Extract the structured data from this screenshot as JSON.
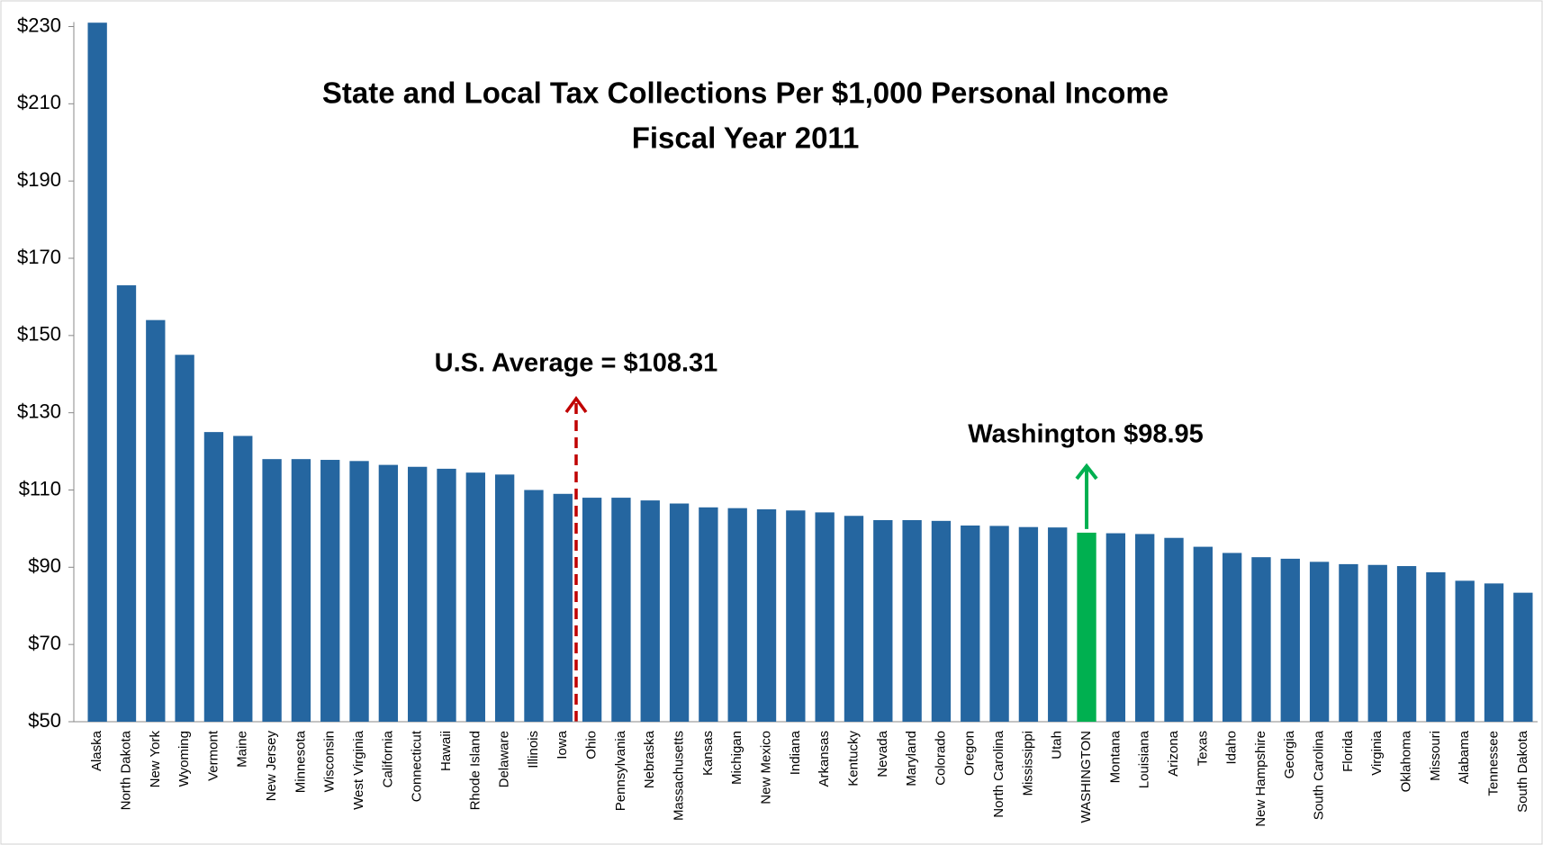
{
  "chart_data": {
    "type": "bar",
    "title": "State and Local Tax Collections Per $1,000 Personal Income",
    "subtitle": "Fiscal Year 2011",
    "categories": [
      "Alaska",
      "North Dakota",
      "New York",
      "Wyoming",
      "Vermont",
      "Maine",
      "New Jersey",
      "Minnesota",
      "Wisconsin",
      "West Virginia",
      "California",
      "Connecticut",
      "Hawaii",
      "Rhode Island",
      "Delaware",
      "Illinois",
      "Iowa",
      "Ohio",
      "Pennsylvania",
      "Nebraska",
      "Massachusetts",
      "Kansas",
      "Michigan",
      "New Mexico",
      "Indiana",
      "Arkansas",
      "Kentucky",
      "Nevada",
      "Maryland",
      "Colorado",
      "Oregon",
      "North Carolina",
      "Mississippi",
      "Utah",
      "WASHINGTON",
      "Montana",
      "Louisiana",
      "Arizona",
      "Texas",
      "Idaho",
      "New Hampshire",
      "Georgia",
      "South Carolina",
      "Florida",
      "Virginia",
      "Oklahoma",
      "Missouri",
      "Alabama",
      "Tennessee",
      "South Dakota"
    ],
    "values": [
      231,
      163,
      154,
      145,
      125,
      124,
      118,
      118,
      117.8,
      117.5,
      116.5,
      116,
      115.5,
      114.5,
      114,
      110,
      109,
      108,
      108,
      107.3,
      106.5,
      105.5,
      105.3,
      105,
      104.7,
      104.2,
      103.3,
      102.2,
      102.2,
      102,
      100.8,
      100.7,
      100.4,
      100.3,
      98.95,
      98.8,
      98.6,
      97.6,
      95.3,
      93.7,
      92.6,
      92.2,
      91.4,
      90.8,
      90.6,
      90.3,
      88.7,
      86.5,
      85.8,
      83.4
    ],
    "color": "#2566a0",
    "highlight_color": "#00b050",
    "highlight": "WASHINGTON",
    "ylim": [
      50,
      230
    ],
    "yticks": [
      {
        "value": 50,
        "label": "$50"
      },
      {
        "value": 70,
        "label": "$70"
      },
      {
        "value": 90,
        "label": "$90"
      },
      {
        "value": 110,
        "label": "$110"
      },
      {
        "value": 130,
        "label": "$130"
      },
      {
        "value": 150,
        "label": "$150"
      },
      {
        "value": 170,
        "label": "$170"
      },
      {
        "value": 190,
        "label": "$190"
      },
      {
        "value": 210,
        "label": "$210"
      },
      {
        "value": 230,
        "label": "$230"
      }
    ],
    "grid": false,
    "annotations": [
      "U.S. Average = $108.31",
      "Washington $98.95"
    ]
  }
}
